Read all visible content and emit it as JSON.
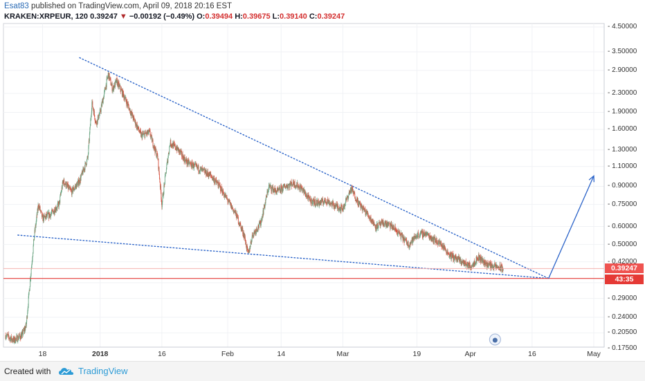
{
  "header": {
    "author": "Esat83",
    "published_text": " published on TradingView.com, April 09, 2018 20:16 EST"
  },
  "symbol_bar": {
    "symbol": "KRAKEN:XRPEUR, 120",
    "last": "0.39247",
    "arrow": "▼",
    "change": "−0.00192 (−0.49%)",
    "o_label": "O:",
    "o_value": "0.39494",
    "h_label": "H:",
    "h_value": "0.39675",
    "l_label": "L:",
    "l_value": "0.39140",
    "c_label": "C:",
    "c_value": "0.39247"
  },
  "price_labels": {
    "last_price": "0.39247",
    "countdown": "43:35"
  },
  "footer": {
    "created_with": "Created with",
    "brand": "TradingView"
  },
  "colors": {
    "candle_up": "#6ba583",
    "candle_down": "#d75442",
    "trendline": "#2962c8",
    "support_line": "#e53935",
    "last_price_tag": "#ef5350",
    "countdown_tag": "#e53935"
  },
  "chart_data": {
    "type": "candlestick",
    "symbol": "KRAKEN:XRPEUR",
    "interval": "120",
    "scale": "log",
    "y_ticks": [
      4.5,
      3.5,
      2.9,
      2.3,
      1.9,
      1.6,
      1.3,
      1.1,
      0.9,
      0.75,
      0.6,
      0.5,
      0.42,
      0.34,
      0.29,
      0.24,
      0.205,
      0.175
    ],
    "y_tick_labels": [
      "4.50000",
      "3.50000",
      "2.90000",
      "2.30000",
      "1.90000",
      "1.60000",
      "1.30000",
      "1.10000",
      "0.90000",
      "0.75000",
      "0.60000",
      "0.50000",
      "0.42000",
      "0.34000",
      "0.29000",
      "0.24000",
      "0.20500",
      "0.17500"
    ],
    "x_ticks": [
      {
        "label": "18",
        "date": "2017-12-18",
        "bold": false
      },
      {
        "label": "2018",
        "date": "2018-01-01",
        "bold": true
      },
      {
        "label": "16",
        "date": "2018-01-16",
        "bold": false
      },
      {
        "label": "Feb",
        "date": "2018-02-01",
        "bold": false
      },
      {
        "label": "14",
        "date": "2018-02-14",
        "bold": false
      },
      {
        "label": "Mar",
        "date": "2018-03-01",
        "bold": false
      },
      {
        "label": "19",
        "date": "2018-03-19",
        "bold": false
      },
      {
        "label": "Apr",
        "date": "2018-04-01",
        "bold": false
      },
      {
        "label": "16",
        "date": "2018-04-16",
        "bold": false
      },
      {
        "label": "May",
        "date": "2018-05-01",
        "bold": false
      }
    ],
    "x_range": [
      "2017-12-09",
      "2018-05-01"
    ],
    "price_path": [
      [
        "2017-12-09",
        0.2
      ],
      [
        "2017-12-11",
        0.19
      ],
      [
        "2017-12-13",
        0.2
      ],
      [
        "2017-12-14",
        0.22
      ],
      [
        "2017-12-15",
        0.35
      ],
      [
        "2017-12-16",
        0.55
      ],
      [
        "2017-12-17",
        0.75
      ],
      [
        "2017-12-18",
        0.65
      ],
      [
        "2017-12-20",
        0.68
      ],
      [
        "2017-12-22",
        0.75
      ],
      [
        "2017-12-23",
        0.95
      ],
      [
        "2017-12-25",
        0.85
      ],
      [
        "2017-12-27",
        0.95
      ],
      [
        "2017-12-29",
        1.2
      ],
      [
        "2017-12-30",
        2.1
      ],
      [
        "2017-12-31",
        1.7
      ],
      [
        "2018-01-01",
        1.9
      ],
      [
        "2018-01-02",
        2.3
      ],
      [
        "2018-01-03",
        2.8
      ],
      [
        "2018-01-04",
        2.4
      ],
      [
        "2018-01-05",
        2.6
      ],
      [
        "2018-01-07",
        2.2
      ],
      [
        "2018-01-09",
        1.8
      ],
      [
        "2018-01-11",
        1.5
      ],
      [
        "2018-01-13",
        1.55
      ],
      [
        "2018-01-15",
        1.2
      ],
      [
        "2018-01-16",
        0.75
      ],
      [
        "2018-01-17",
        1.05
      ],
      [
        "2018-01-18",
        1.4
      ],
      [
        "2018-01-20",
        1.3
      ],
      [
        "2018-01-22",
        1.15
      ],
      [
        "2018-01-24",
        1.1
      ],
      [
        "2018-01-26",
        1.05
      ],
      [
        "2018-01-28",
        1.0
      ],
      [
        "2018-01-30",
        0.9
      ],
      [
        "2018-02-01",
        0.78
      ],
      [
        "2018-02-03",
        0.68
      ],
      [
        "2018-02-05",
        0.55
      ],
      [
        "2018-02-06",
        0.45
      ],
      [
        "2018-02-07",
        0.55
      ],
      [
        "2018-02-09",
        0.62
      ],
      [
        "2018-02-11",
        0.9
      ],
      [
        "2018-02-13",
        0.85
      ],
      [
        "2018-02-15",
        0.9
      ],
      [
        "2018-02-17",
        0.93
      ],
      [
        "2018-02-19",
        0.88
      ],
      [
        "2018-02-21",
        0.78
      ],
      [
        "2018-02-23",
        0.76
      ],
      [
        "2018-02-25",
        0.78
      ],
      [
        "2018-02-27",
        0.74
      ],
      [
        "2018-03-01",
        0.72
      ],
      [
        "2018-03-03",
        0.88
      ],
      [
        "2018-03-05",
        0.75
      ],
      [
        "2018-03-07",
        0.68
      ],
      [
        "2018-03-09",
        0.6
      ],
      [
        "2018-03-11",
        0.62
      ],
      [
        "2018-03-13",
        0.6
      ],
      [
        "2018-03-15",
        0.55
      ],
      [
        "2018-03-17",
        0.5
      ],
      [
        "2018-03-19",
        0.55
      ],
      [
        "2018-03-21",
        0.56
      ],
      [
        "2018-03-23",
        0.53
      ],
      [
        "2018-03-25",
        0.5
      ],
      [
        "2018-03-27",
        0.45
      ],
      [
        "2018-03-29",
        0.43
      ],
      [
        "2018-03-31",
        0.41
      ],
      [
        "2018-04-01",
        0.4
      ],
      [
        "2018-04-03",
        0.44
      ],
      [
        "2018-04-05",
        0.41
      ],
      [
        "2018-04-07",
        0.4
      ],
      [
        "2018-04-09",
        0.39247
      ]
    ],
    "lines": [
      {
        "name": "upper-trendline",
        "style": "dotted",
        "from": [
          "2017-12-27",
          3.3
        ],
        "to": [
          "2018-04-20",
          0.355
        ]
      },
      {
        "name": "lower-trendline",
        "style": "dotted",
        "from": [
          "2017-12-12",
          0.55
        ],
        "to": [
          "2018-04-20",
          0.355
        ]
      },
      {
        "name": "support-level",
        "style": "solid",
        "value": 0.355
      },
      {
        "name": "last-price-line",
        "style": "solid",
        "value": 0.39247
      }
    ],
    "arrow": {
      "from": [
        "2018-04-20",
        0.355
      ],
      "to": [
        "2018-05-01",
        1.0
      ]
    }
  }
}
